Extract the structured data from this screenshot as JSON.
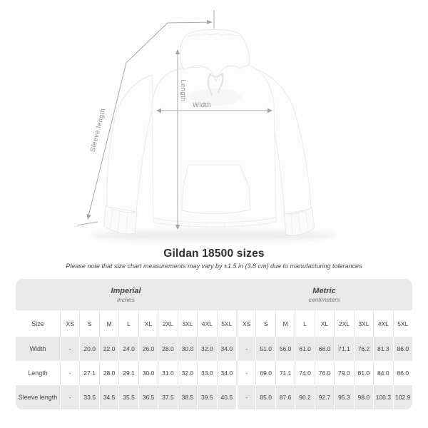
{
  "title": "Gildan 18500 sizes",
  "subtitle": "Please note that size chart measurements may vary by ±1.5 in (3.8 cm) due to manufacturing tolerances",
  "diagram": {
    "width_label": "Width",
    "length_label": "Length",
    "sleeve_label": "Sleeve length"
  },
  "table": {
    "size_col_header": "Size",
    "unit_groups": [
      {
        "name": "Imperial",
        "unit": "inches"
      },
      {
        "name": "Metric",
        "unit": "centimeters"
      }
    ],
    "sizes": [
      "XS",
      "S",
      "M",
      "L",
      "XL",
      "2XL",
      "3XL",
      "4XL",
      "5XL"
    ],
    "rows": [
      {
        "label": "Width",
        "imperial": [
          "-",
          "20.0",
          "22.0",
          "24.0",
          "26.0",
          "28.0",
          "30.0",
          "32.0",
          "34.0"
        ],
        "metric": [
          "-",
          "51.0",
          "56.0",
          "61.0",
          "66.0",
          "71.1",
          "76.2",
          "81.3",
          "86.0"
        ]
      },
      {
        "label": "Length",
        "imperial": [
          "-",
          "27.1",
          "28.0",
          "29.1",
          "30.0",
          "31.0",
          "32.0",
          "33.0",
          "34.0"
        ],
        "metric": [
          "-",
          "69.0",
          "71.1",
          "74.0",
          "76.0",
          "79.0",
          "81.0",
          "84.0",
          "86.0"
        ]
      },
      {
        "label": "Sleeve length",
        "imperial": [
          "-",
          "33.5",
          "34.5",
          "35.5",
          "36.5",
          "37.5",
          "38.5",
          "39.5",
          "40.5"
        ],
        "metric": [
          "-",
          "85.0",
          "87.6",
          "90.2",
          "92.7",
          "95.3",
          "98.0",
          "100.3",
          "102.9"
        ]
      }
    ]
  },
  "chart_data": {
    "type": "table",
    "title": "Gildan 18500 sizes",
    "note": "Measurements may vary by ±1.5 in (3.8 cm)",
    "columns": [
      "XS",
      "S",
      "M",
      "L",
      "XL",
      "2XL",
      "3XL",
      "4XL",
      "5XL"
    ],
    "measurements": [
      {
        "name": "Width",
        "imperial_inches": [
          null,
          20.0,
          22.0,
          24.0,
          26.0,
          28.0,
          30.0,
          32.0,
          34.0
        ],
        "metric_cm": [
          null,
          51.0,
          56.0,
          61.0,
          66.0,
          71.1,
          76.2,
          81.3,
          86.0
        ]
      },
      {
        "name": "Length",
        "imperial_inches": [
          null,
          27.1,
          28.0,
          29.1,
          30.0,
          31.0,
          32.0,
          33.0,
          34.0
        ],
        "metric_cm": [
          null,
          69.0,
          71.1,
          74.0,
          76.0,
          79.0,
          81.0,
          84.0,
          86.0
        ]
      },
      {
        "name": "Sleeve length",
        "imperial_inches": [
          null,
          33.5,
          34.5,
          35.5,
          36.5,
          37.5,
          38.5,
          39.5,
          40.5
        ],
        "metric_cm": [
          null,
          85.0,
          87.6,
          90.2,
          92.7,
          95.3,
          98.0,
          100.3,
          102.9
        ]
      }
    ]
  },
  "colors": {
    "table_stripe": "#e9e9e9",
    "dimension_line": "#a8a8a8",
    "dimension_text": "#8d9196"
  }
}
